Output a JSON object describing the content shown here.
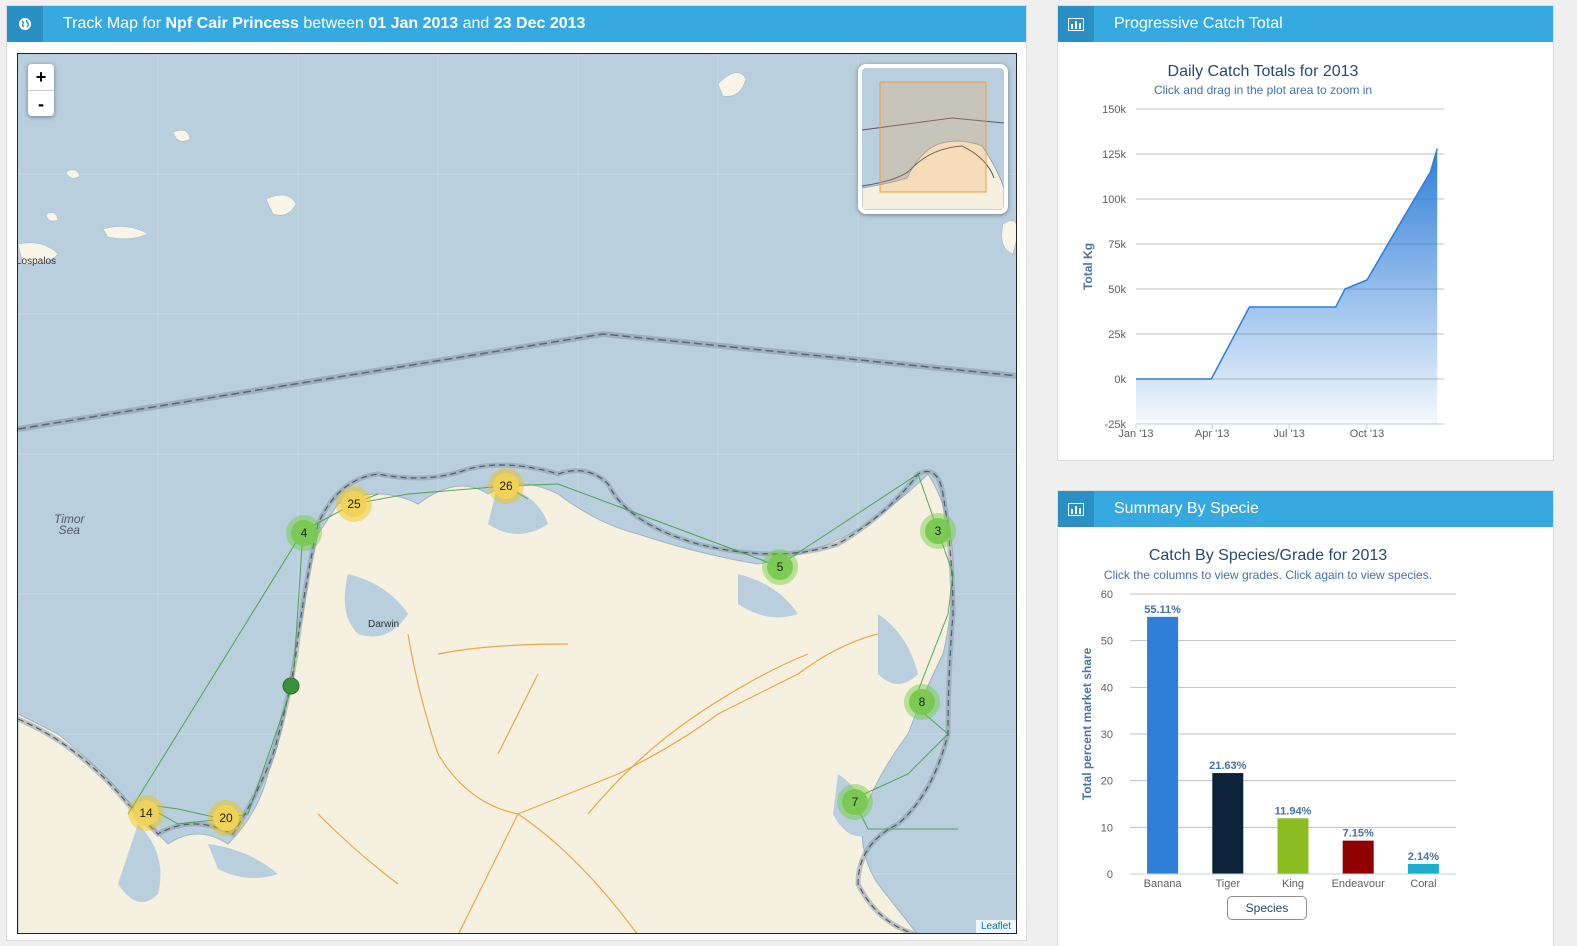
{
  "map_panel": {
    "title_prefix": "Track Map for ",
    "vessel": "Npf Cair Princess",
    "between": " between ",
    "date_from": "01 Jan 2013",
    "and": " and ",
    "date_to": "23 Dec 2013",
    "icon": "globe-icon",
    "zoom_in": "+",
    "zoom_out": "-",
    "attribution": "Leaflet",
    "labels": {
      "lospalos": "Lospalos",
      "darwin": "Darwin",
      "sea_line1": "Timor",
      "sea_line2": "Sea"
    },
    "clusters": [
      {
        "count": "25",
        "color": "yellow"
      },
      {
        "count": "26",
        "color": "yellow"
      },
      {
        "count": "4",
        "color": "green"
      },
      {
        "count": "5",
        "color": "green"
      },
      {
        "count": "3",
        "color": "green"
      },
      {
        "count": "8",
        "color": "green"
      },
      {
        "count": "7",
        "color": "green"
      },
      {
        "count": "14",
        "color": "yellow"
      },
      {
        "count": "20",
        "color": "yellow"
      }
    ]
  },
  "catch_panel": {
    "title": "Progressive Catch Total",
    "icon": "bar-chart-icon"
  },
  "species_panel": {
    "title": "Summary By Specie",
    "icon": "bar-chart-icon"
  },
  "chart_data": [
    {
      "type": "area",
      "title": "Daily Catch Totals for 2013",
      "subtitle": "Click and drag in the plot area to zoom in",
      "ylabel": "Total Kg",
      "ylim": [
        -25000,
        150000
      ],
      "y_ticks": [
        "150k",
        "125k",
        "100k",
        "75k",
        "50k",
        "25k",
        "0k",
        "-25k"
      ],
      "x_ticks": [
        "Jan '13",
        "Apr '13",
        "Jul '13",
        "Oct '13"
      ],
      "x": [
        "2013-01-01",
        "2013-03-31",
        "2013-05-15",
        "2013-08-25",
        "2013-09-05",
        "2013-10-01",
        "2013-11-01",
        "2013-12-15",
        "2013-12-23"
      ],
      "values": [
        0,
        0,
        40000,
        40000,
        50000,
        55000,
        80000,
        115000,
        128000
      ],
      "grid": true,
      "color": "#2f7ed8"
    },
    {
      "type": "bar",
      "title": "Catch By Species/Grade for 2013",
      "subtitle": "Click the columns to view grades. Click again to view species.",
      "ylabel": "Total percent market share",
      "ylim": [
        0,
        60
      ],
      "y_ticks": [
        "60",
        "50",
        "40",
        "30",
        "20",
        "10",
        "0"
      ],
      "categories": [
        "Banana",
        "Tiger",
        "King",
        "Endeavour",
        "Coral"
      ],
      "values": [
        55.11,
        21.63,
        11.94,
        7.15,
        2.14
      ],
      "data_labels": [
        "55.11%",
        "21.63%",
        "11.94%",
        "7.15%",
        "2.14%"
      ],
      "colors": [
        "#2f7ed8",
        "#0d233a",
        "#8bbc21",
        "#910000",
        "#1aadce"
      ],
      "legend": [
        "Species"
      ],
      "grid": true
    }
  ]
}
